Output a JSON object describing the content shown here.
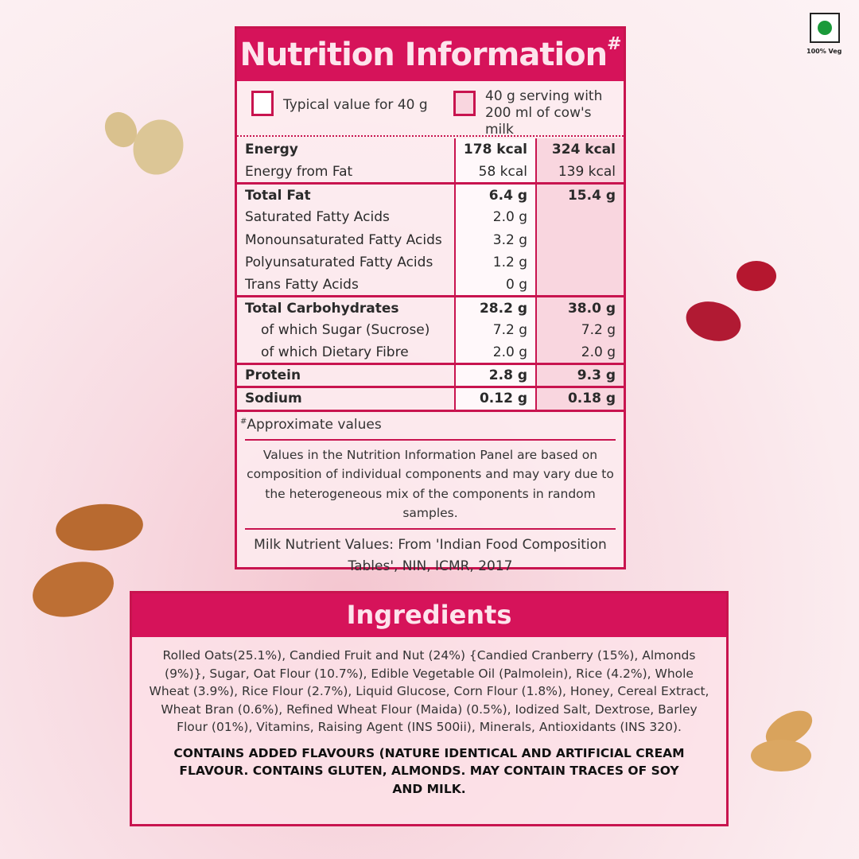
{
  "badge": {
    "label": "100% Veg",
    "color": "#1a9a3a"
  },
  "nutrition": {
    "title": "Nutrition Information",
    "title_mark": "#",
    "legend": [
      {
        "label": "Typical value for 40 g"
      },
      {
        "label_line1": "40 g serving with",
        "label_line2": "200 ml of cow's milk"
      }
    ],
    "rows": [
      {
        "label": "Energy",
        "v1": "178 kcal",
        "v2": "324 kcal"
      },
      {
        "label": "Energy from Fat",
        "v1": "58 kcal",
        "v2": "139 kcal"
      },
      {
        "label": "Total Fat",
        "v1": "6.4 g",
        "v2": "15.4 g"
      },
      {
        "label": "Saturated Fatty Acids",
        "v1": "2.0 g",
        "v2": ""
      },
      {
        "label": "Monounsaturated Fatty Acids",
        "v1": "3.2 g",
        "v2": ""
      },
      {
        "label": "Polyunsaturated Fatty Acids",
        "v1": "1.2 g",
        "v2": ""
      },
      {
        "label": "Trans Fatty Acids",
        "v1": "0 g",
        "v2": ""
      },
      {
        "label": "Total Carbohydrates",
        "v1": "28.2 g",
        "v2": "38.0 g"
      },
      {
        "label": "of which Sugar (Sucrose)",
        "v1": "7.2 g",
        "v2": "7.2 g"
      },
      {
        "label": "of which Dietary Fibre",
        "v1": "2.0 g",
        "v2": "2.0 g"
      },
      {
        "label": "Protein",
        "v1": "2.8 g",
        "v2": "9.3 g"
      },
      {
        "label": "Sodium",
        "v1": "0.12 g",
        "v2": "0.18 g"
      }
    ],
    "approx_mark": "#",
    "approx": "Approximate values",
    "note": "Values in the Nutrition Information Panel are based on composition of individual components and may vary due to the heterogeneous mix of the components in random samples.",
    "source": "Milk Nutrient Values: From 'Indian Food Composition Tables', NIN, ICMR, 2017"
  },
  "ingredients": {
    "title": "Ingredients",
    "text": "Rolled Oats(25.1%), Candied Fruit and Nut (24%) {Candied Cranberry (15%), Almonds (9%)}, Sugar, Oat Flour (10.7%), Edible Vegetable Oil (Palmolein), Rice (4.2%), Whole Wheat (3.9%), Rice Flour (2.7%), Liquid Glucose, Corn Flour (1.8%), Honey, Cereal Extract, Wheat Bran (0.6%), Refined Wheat Flour (Maida) (0.5%), Iodized Salt, Dextrose, Barley Flour (01%), Vitamins, Raising Agent (INS 500ii), Minerals, Antioxidants (INS 320).",
    "warning": "CONTAINS ADDED FLAVOURS (NATURE IDENTICAL AND ARTIFICIAL CREAM FLAVOUR. CONTAINS GLUTEN, ALMONDS. MAY CONTAIN TRACES OF SOY AND MILK."
  },
  "colors": {
    "accent": "#d6135a",
    "border": "#c8144f"
  }
}
